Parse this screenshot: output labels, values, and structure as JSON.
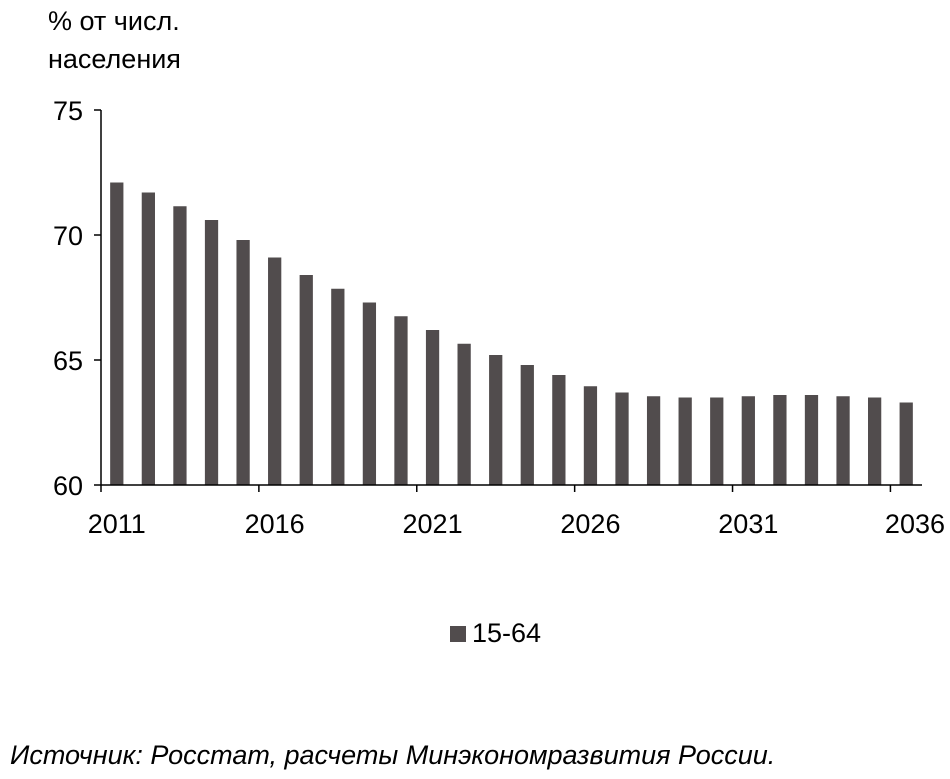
{
  "chart_data": {
    "type": "bar",
    "ylabel": [
      "% от числ.",
      "населения"
    ],
    "xlabel": "",
    "ylim": [
      60,
      75
    ],
    "yticks": [
      60,
      65,
      70,
      75
    ],
    "xticks": [
      "2011",
      "2016",
      "2021",
      "2026",
      "2031",
      "2036"
    ],
    "categories": [
      "2011",
      "2012",
      "2013",
      "2014",
      "2015",
      "2016",
      "2017",
      "2018",
      "2019",
      "2020",
      "2021",
      "2022",
      "2023",
      "2024",
      "2025",
      "2026",
      "2027",
      "2028",
      "2029",
      "2030",
      "2031",
      "2032",
      "2033",
      "2034",
      "2035",
      "2036"
    ],
    "series": [
      {
        "name": "15-64",
        "color": "#514c4d",
        "values": [
          72.1,
          71.7,
          71.15,
          70.6,
          69.8,
          69.1,
          68.4,
          67.85,
          67.3,
          66.75,
          66.2,
          65.65,
          65.2,
          64.8,
          64.4,
          63.95,
          63.7,
          63.55,
          63.5,
          63.5,
          63.55,
          63.6,
          63.6,
          63.55,
          63.5,
          63.3
        ]
      }
    ],
    "legend_position": "bottom-center",
    "grid": false
  },
  "source_note": "Источник: Росстат, расчеты Минэкономразвития России."
}
